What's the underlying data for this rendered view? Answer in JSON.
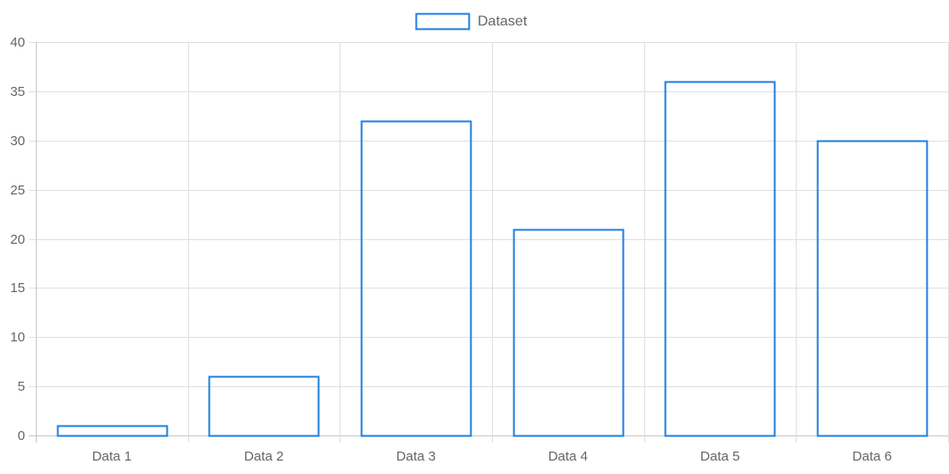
{
  "chart_data": {
    "type": "bar",
    "title": "",
    "xlabel": "",
    "ylabel": "",
    "categories": [
      "Data 1",
      "Data 2",
      "Data 3",
      "Data 4",
      "Data 5",
      "Data 6"
    ],
    "series": [
      {
        "name": "Dataset",
        "values": [
          1,
          6,
          32,
          21,
          36,
          30
        ]
      }
    ],
    "ylim": [
      0,
      40
    ],
    "yticks": [
      0,
      5,
      10,
      15,
      20,
      25,
      30,
      35,
      40
    ],
    "grid": true,
    "legend_position": "top",
    "colors": {
      "bar_border": "#1e7fe0",
      "bar_fill": "transparent",
      "grid": "#e0e0e0",
      "text": "#666666"
    }
  }
}
